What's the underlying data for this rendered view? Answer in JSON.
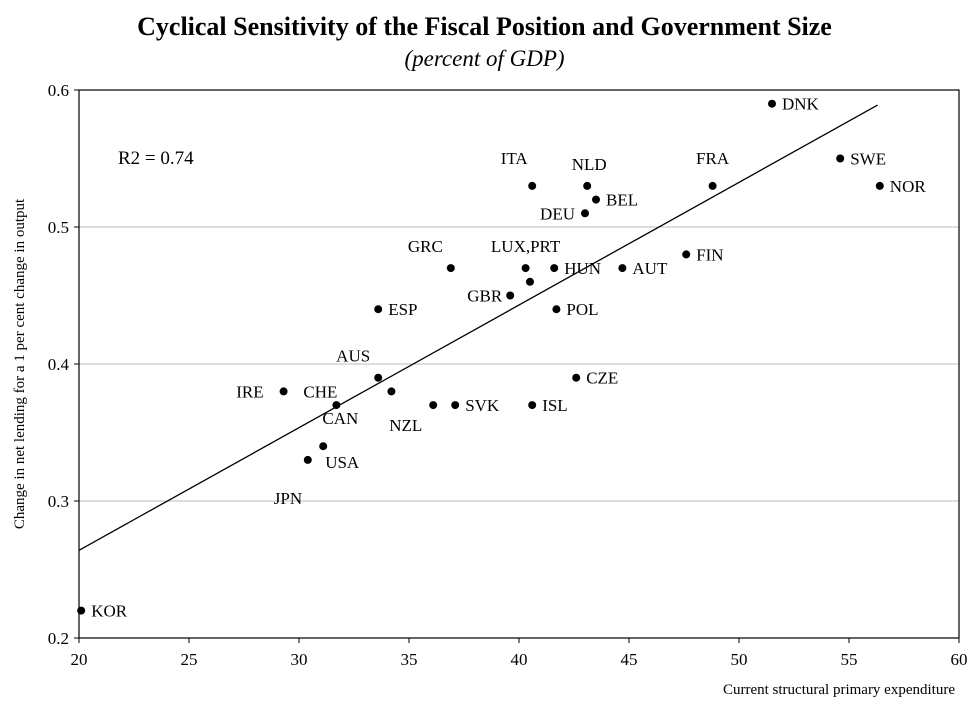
{
  "chart_data": {
    "type": "scatter",
    "title": "Cyclical Sensitivity of the Fiscal Position and Government Size",
    "subtitle": "(percent of GDP)",
    "xlabel": "Current structural primary expenditure",
    "ylabel": "Change in net lending for a 1 per cent change in output",
    "xlim": [
      20,
      60
    ],
    "ylim": [
      0.2,
      0.6
    ],
    "xticks": [
      20,
      25,
      30,
      35,
      40,
      45,
      50,
      55,
      60
    ],
    "yticks": [
      0.2,
      0.3,
      0.4,
      0.5,
      0.6
    ],
    "ytick_labels": [
      "0.2",
      "0.3",
      "0.4",
      "0.5",
      "0.6"
    ],
    "grid": "horizontal",
    "annotation": "R2 = 0.74",
    "trendline": {
      "x": [
        20,
        56.3
      ],
      "y": [
        0.264,
        0.589
      ]
    },
    "points": [
      {
        "label": "DNK",
        "x": 51.5,
        "y": 0.59
      },
      {
        "label": "SWE",
        "x": 54.6,
        "y": 0.55
      },
      {
        "label": "NOR",
        "x": 56.4,
        "y": 0.53
      },
      {
        "label": "FRA",
        "x": 48.8,
        "y": 0.53
      },
      {
        "label": "ITA",
        "x": 40.6,
        "y": 0.53
      },
      {
        "label": "NLD",
        "x": 43.1,
        "y": 0.53
      },
      {
        "label": "BEL",
        "x": 43.5,
        "y": 0.52
      },
      {
        "label": "DEU",
        "x": 43.0,
        "y": 0.51
      },
      {
        "label": "FIN",
        "x": 47.6,
        "y": 0.48
      },
      {
        "label": "GRC",
        "x": 36.9,
        "y": 0.47
      },
      {
        "label": "LUX,PRT",
        "x": 40.3,
        "y": 0.47
      },
      {
        "label": "",
        "x": 40.5,
        "y": 0.46
      },
      {
        "label": "HUN",
        "x": 41.6,
        "y": 0.47
      },
      {
        "label": "AUT",
        "x": 44.7,
        "y": 0.47
      },
      {
        "label": "GBR",
        "x": 39.6,
        "y": 0.45
      },
      {
        "label": "ESP",
        "x": 33.6,
        "y": 0.44
      },
      {
        "label": "POL",
        "x": 41.7,
        "y": 0.44
      },
      {
        "label": "AUS",
        "x": 33.6,
        "y": 0.39
      },
      {
        "label": "CZE",
        "x": 42.6,
        "y": 0.39
      },
      {
        "label": "IRE",
        "x": 29.3,
        "y": 0.38
      },
      {
        "label": "CHE",
        "x": 34.2,
        "y": 0.38
      },
      {
        "label": "CAN",
        "x": 31.7,
        "y": 0.37
      },
      {
        "label": "NZL",
        "x": 36.1,
        "y": 0.37
      },
      {
        "label": "SVK",
        "x": 37.1,
        "y": 0.37
      },
      {
        "label": "ISL",
        "x": 40.6,
        "y": 0.37
      },
      {
        "label": "USA",
        "x": 31.1,
        "y": 0.34
      },
      {
        "label": "JPN",
        "x": 30.4,
        "y": 0.33
      },
      {
        "label": "KOR",
        "x": 20.1,
        "y": 0.22
      }
    ]
  }
}
